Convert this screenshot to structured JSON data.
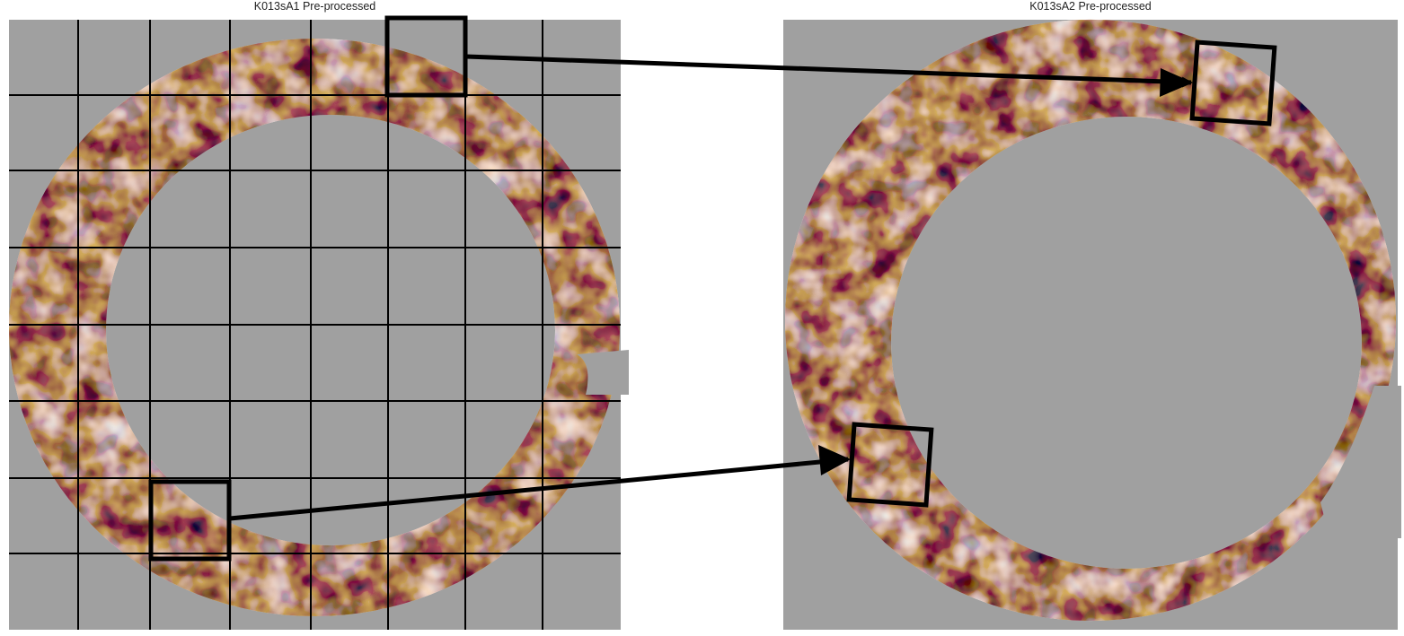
{
  "panels": [
    {
      "title": "K013sA1 Pre-processed"
    },
    {
      "title": "K013sA2 Pre-processed"
    }
  ],
  "colors": {
    "background": "#a0a0a0",
    "ring_base": "#f4f0f2",
    "orange": "#d97a1c",
    "orange_light": "#f2b27a",
    "purple": "#4b2f8c",
    "purple_light": "#b3abd6",
    "annotation": "#000000"
  }
}
